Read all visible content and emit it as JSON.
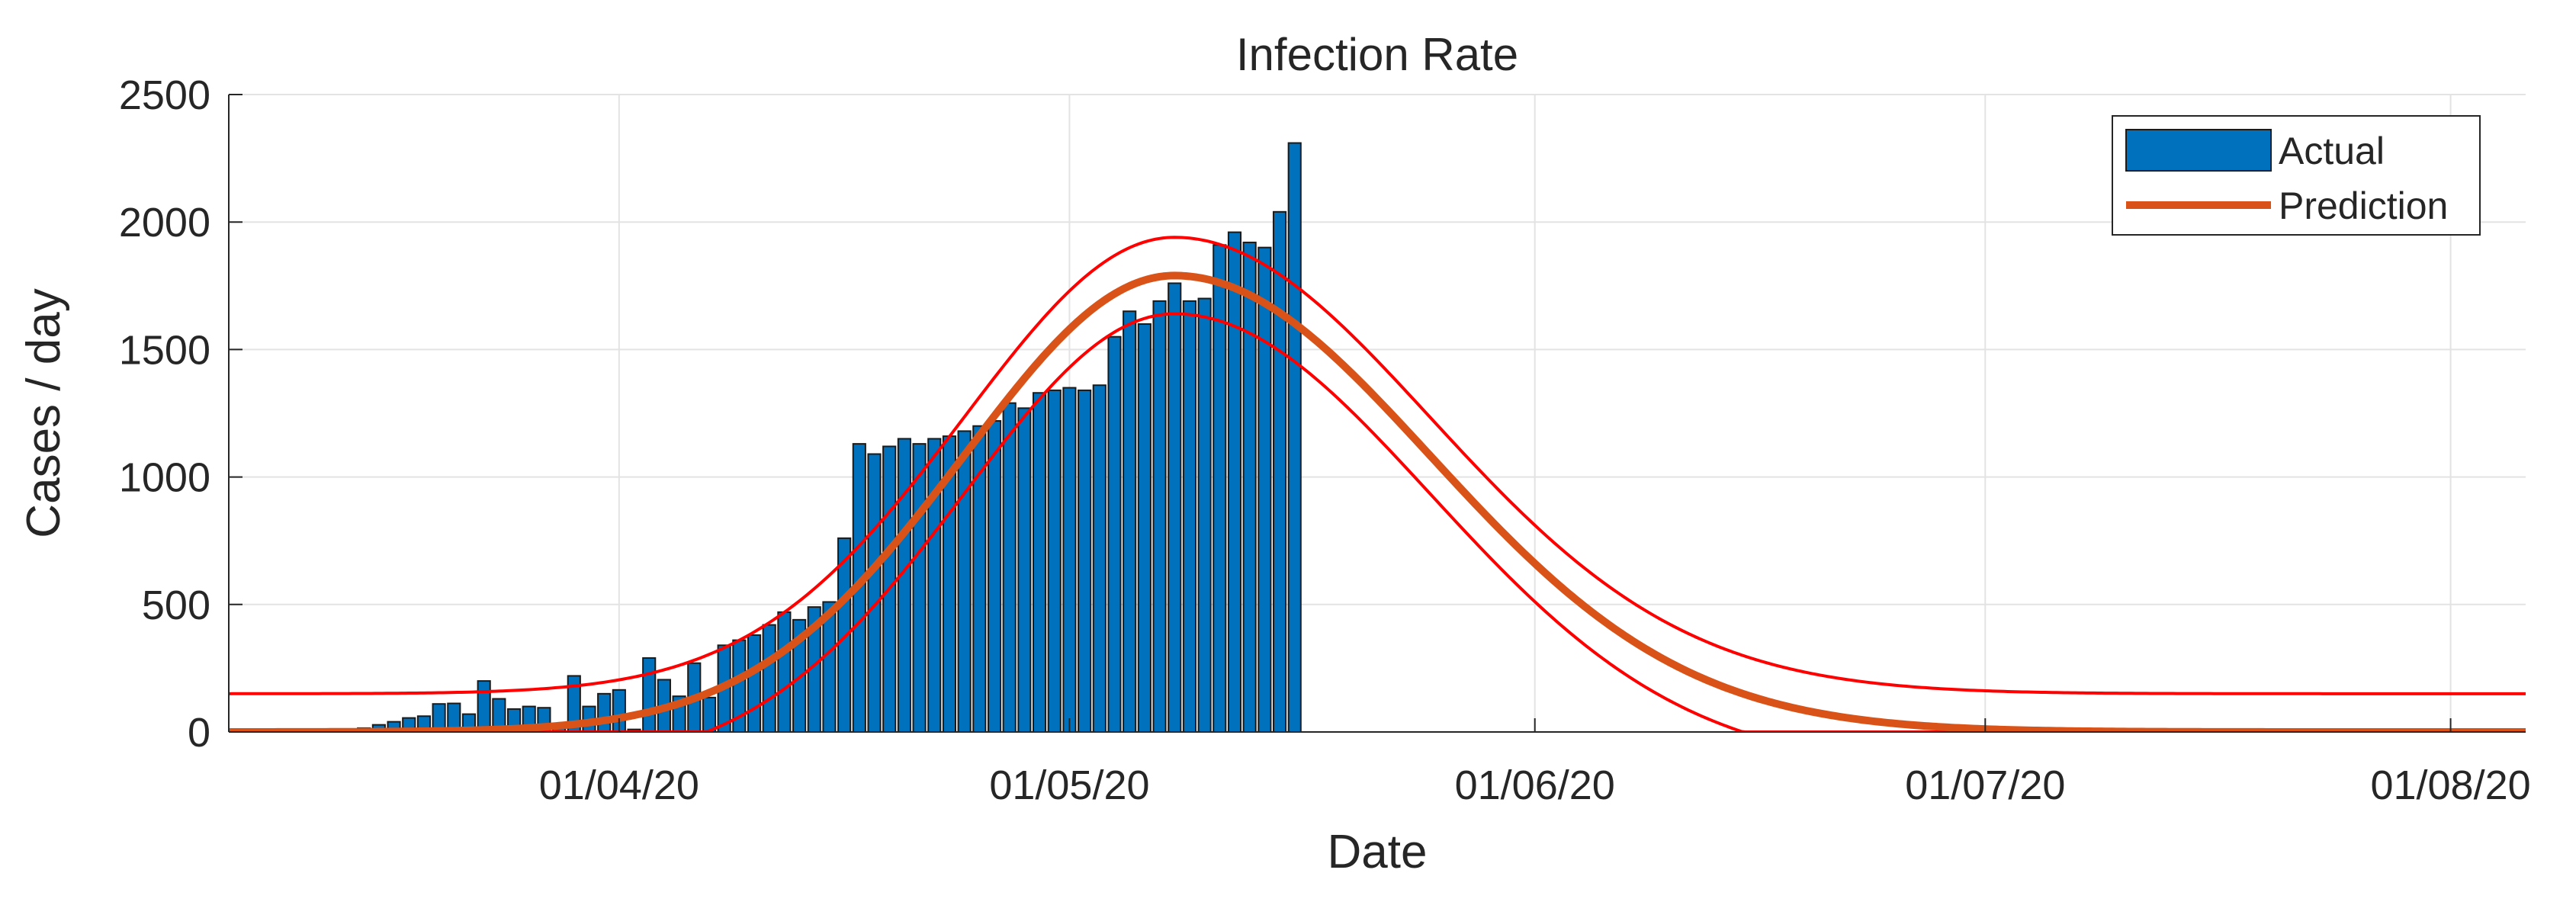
{
  "chart_data": {
    "type": "bar",
    "title": "Infection Rate",
    "xlabel": "Date",
    "ylabel": "Cases / day",
    "ylim": [
      0,
      2500
    ],
    "yticks": [
      0,
      500,
      1000,
      1500,
      2000,
      2500
    ],
    "xlim_days": [
      0,
      153
    ],
    "xticks": [
      {
        "day": 26,
        "label": "01/04/20"
      },
      {
        "day": 56,
        "label": "01/05/20"
      },
      {
        "day": 87,
        "label": "01/06/20"
      },
      {
        "day": 117,
        "label": "01/07/20"
      },
      {
        "day": 148,
        "label": "01/08/20"
      }
    ],
    "grid": true,
    "legend": {
      "position": "top-right",
      "entries": [
        "Actual",
        "Prediction"
      ]
    },
    "colors": {
      "actual": "#0072BD",
      "prediction": "#D95319",
      "bounds": "#FF0000",
      "grid": "#E3E3E3",
      "axis": "#262626"
    },
    "series": [
      {
        "name": "Actual",
        "type": "bar",
        "start_day": 5,
        "values": [
          5,
          3,
          8,
          10,
          15,
          28,
          40,
          55,
          62,
          110,
          112,
          70,
          200,
          130,
          90,
          100,
          95,
          15,
          220,
          100,
          150,
          165,
          10,
          290,
          205,
          140,
          270,
          135,
          340,
          360,
          380,
          420,
          470,
          440,
          490,
          510,
          760,
          1130,
          1090,
          1120,
          1150,
          1130,
          1150,
          1160,
          1180,
          1200,
          1220,
          1290,
          1270,
          1330,
          1340,
          1350,
          1340,
          1360,
          1550,
          1650,
          1600,
          1690,
          1760,
          1690,
          1700,
          1910,
          1960,
          1920,
          1900,
          2040,
          2310
        ]
      },
      {
        "name": "Prediction",
        "type": "line",
        "model": {
          "peak_day": 63,
          "peak_value": 1790,
          "sigma_left": 14,
          "sigma_right": 17
        },
        "bounds_offset": 150
      }
    ]
  }
}
